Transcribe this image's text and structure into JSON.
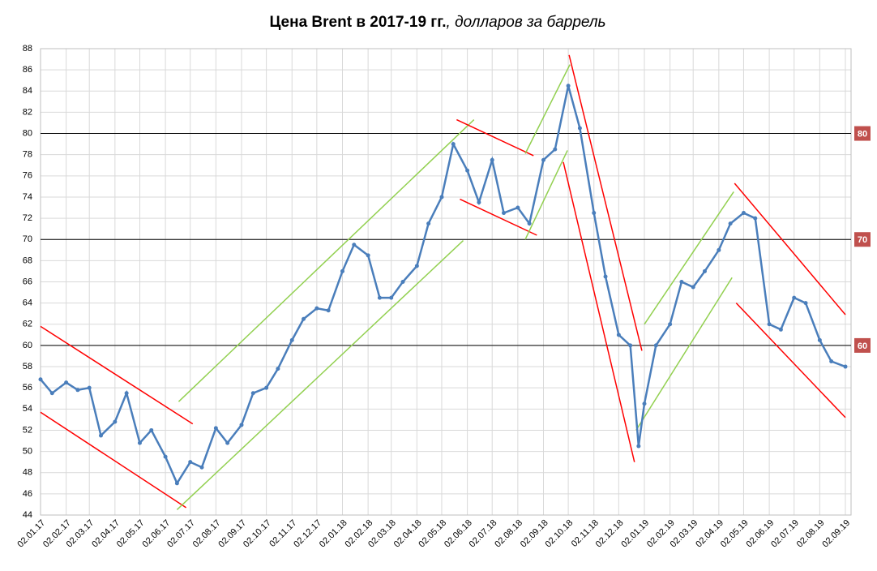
{
  "chart_data": {
    "type": "line",
    "title": "Цена Brent в 2017-19 гг.",
    "title_suffix": ", долларов за баррель",
    "series": [
      {
        "color": "#4a7ebb",
        "x": [
          "02.01.17",
          "16.01.17",
          "02.02.17",
          "16.02.17",
          "02.03.17",
          "16.03.17",
          "02.04.17",
          "16.04.17",
          "02.05.17",
          "16.05.17",
          "02.06.17",
          "16.06.17",
          "02.07.17",
          "16.07.17",
          "02.08.17",
          "16.08.17",
          "02.09.17",
          "16.09.17",
          "02.10.17",
          "16.10.17",
          "02.11.17",
          "16.11.17",
          "02.12.17",
          "16.12.17",
          "02.01.18",
          "16.01.18",
          "02.02.18",
          "16.02.18",
          "02.03.18",
          "16.03.18",
          "02.04.18",
          "16.04.18",
          "02.05.18",
          "16.05.18",
          "02.06.18",
          "16.06.18",
          "02.07.18",
          "16.07.18",
          "02.08.18",
          "16.08.18",
          "02.09.18",
          "16.09.18",
          "02.10.18",
          "16.10.18",
          "02.11.18",
          "16.11.18",
          "02.12.18",
          "16.12.18",
          "26.12.18",
          "02.01.19",
          "16.01.19",
          "02.02.19",
          "16.02.19",
          "02.03.19",
          "16.03.19",
          "02.04.19",
          "16.04.19",
          "02.05.19",
          "16.05.19",
          "02.06.19",
          "16.06.19",
          "02.07.19",
          "16.07.19",
          "02.08.19",
          "16.08.19",
          "02.09.19"
        ],
        "values": [
          56.8,
          55.5,
          56.5,
          55.8,
          56.0,
          51.5,
          52.8,
          55.5,
          50.8,
          52.0,
          49.5,
          47.0,
          49.0,
          48.5,
          52.2,
          50.8,
          52.5,
          55.5,
          56.0,
          57.8,
          60.5,
          62.5,
          63.5,
          63.3,
          67.0,
          69.5,
          68.5,
          64.5,
          64.5,
          66.0,
          67.5,
          71.5,
          74.0,
          79.0,
          76.5,
          73.5,
          77.5,
          72.5,
          73.0,
          71.5,
          77.5,
          78.5,
          84.5,
          80.5,
          72.5,
          66.5,
          61.0,
          60.0,
          50.5,
          54.5,
          60.0,
          62.0,
          66.0,
          65.5,
          67.0,
          69.0,
          71.5,
          72.5,
          72.0,
          62.0,
          61.5,
          64.5,
          64.0,
          60.5,
          58.5,
          58.0
        ]
      }
    ],
    "channels": [
      {
        "color": "#ff0000",
        "x": [
          "02.01.17",
          "05.07.17"
        ],
        "values": [
          61.8,
          52.6
        ]
      },
      {
        "color": "#ff0000",
        "x": [
          "02.01.17",
          "27.06.17"
        ],
        "values": [
          53.7,
          44.7
        ]
      },
      {
        "color": "#92d050",
        "x": [
          "18.06.17",
          "10.06.18"
        ],
        "values": [
          54.7,
          81.3
        ]
      },
      {
        "color": "#92d050",
        "x": [
          "16.06.17",
          "28.05.18"
        ],
        "values": [
          44.5,
          69.9
        ]
      },
      {
        "color": "#ff0000",
        "x": [
          "20.05.18",
          "21.08.18"
        ],
        "values": [
          81.3,
          77.9
        ]
      },
      {
        "color": "#ff0000",
        "x": [
          "24.05.18",
          "25.08.18"
        ],
        "values": [
          73.8,
          70.4
        ]
      },
      {
        "color": "#92d050",
        "x": [
          "11.08.18",
          "04.10.18"
        ],
        "values": [
          78.1,
          86.5
        ]
      },
      {
        "color": "#92d050",
        "x": [
          "11.08.18",
          "01.10.18"
        ],
        "values": [
          70.0,
          78.4
        ]
      },
      {
        "color": "#ff0000",
        "x": [
          "03.10.18",
          "30.12.18"
        ],
        "values": [
          87.4,
          59.5
        ]
      },
      {
        "color": "#ff0000",
        "x": [
          "26.09.18",
          "21.12.18"
        ],
        "values": [
          77.3,
          49.0
        ]
      },
      {
        "color": "#92d050",
        "x": [
          "02.01.19",
          "20.04.19"
        ],
        "values": [
          62.0,
          74.5
        ]
      },
      {
        "color": "#92d050",
        "x": [
          "23.12.18",
          "18.04.19"
        ],
        "values": [
          52.0,
          66.4
        ]
      },
      {
        "color": "#ff0000",
        "x": [
          "21.04.19",
          "02.09.19"
        ],
        "values": [
          75.3,
          62.9
        ]
      },
      {
        "color": "#ff0000",
        "x": [
          "23.04.19",
          "02.09.19"
        ],
        "values": [
          64.0,
          53.2
        ]
      }
    ],
    "reference_lines": [
      80,
      70,
      60
    ],
    "reference_color": "#c0504d",
    "xlim": [
      "02.01.17",
      "02.09.19"
    ],
    "xticks": [
      "02.01.17",
      "02.02.17",
      "02.03.17",
      "02.04.17",
      "02.05.17",
      "02.06.17",
      "02.07.17",
      "02.08.17",
      "02.09.17",
      "02.10.17",
      "02.11.17",
      "02.12.17",
      "02.01.18",
      "02.02.18",
      "02.03.18",
      "02.04.18",
      "02.05.18",
      "02.06.18",
      "02.07.18",
      "02.08.18",
      "02.09.18",
      "02.10.18",
      "02.11.18",
      "02.12.18",
      "02.01.19",
      "02.02.19",
      "02.03.19",
      "02.04.19",
      "02.05.19",
      "02.06.19",
      "02.07.19",
      "02.08.19",
      "02.09.19"
    ],
    "ylim": [
      44,
      88
    ],
    "yticks": [
      44,
      46,
      48,
      50,
      52,
      54,
      56,
      58,
      60,
      62,
      64,
      66,
      68,
      70,
      72,
      74,
      76,
      78,
      80,
      82,
      84,
      86,
      88
    ],
    "grid": true
  }
}
